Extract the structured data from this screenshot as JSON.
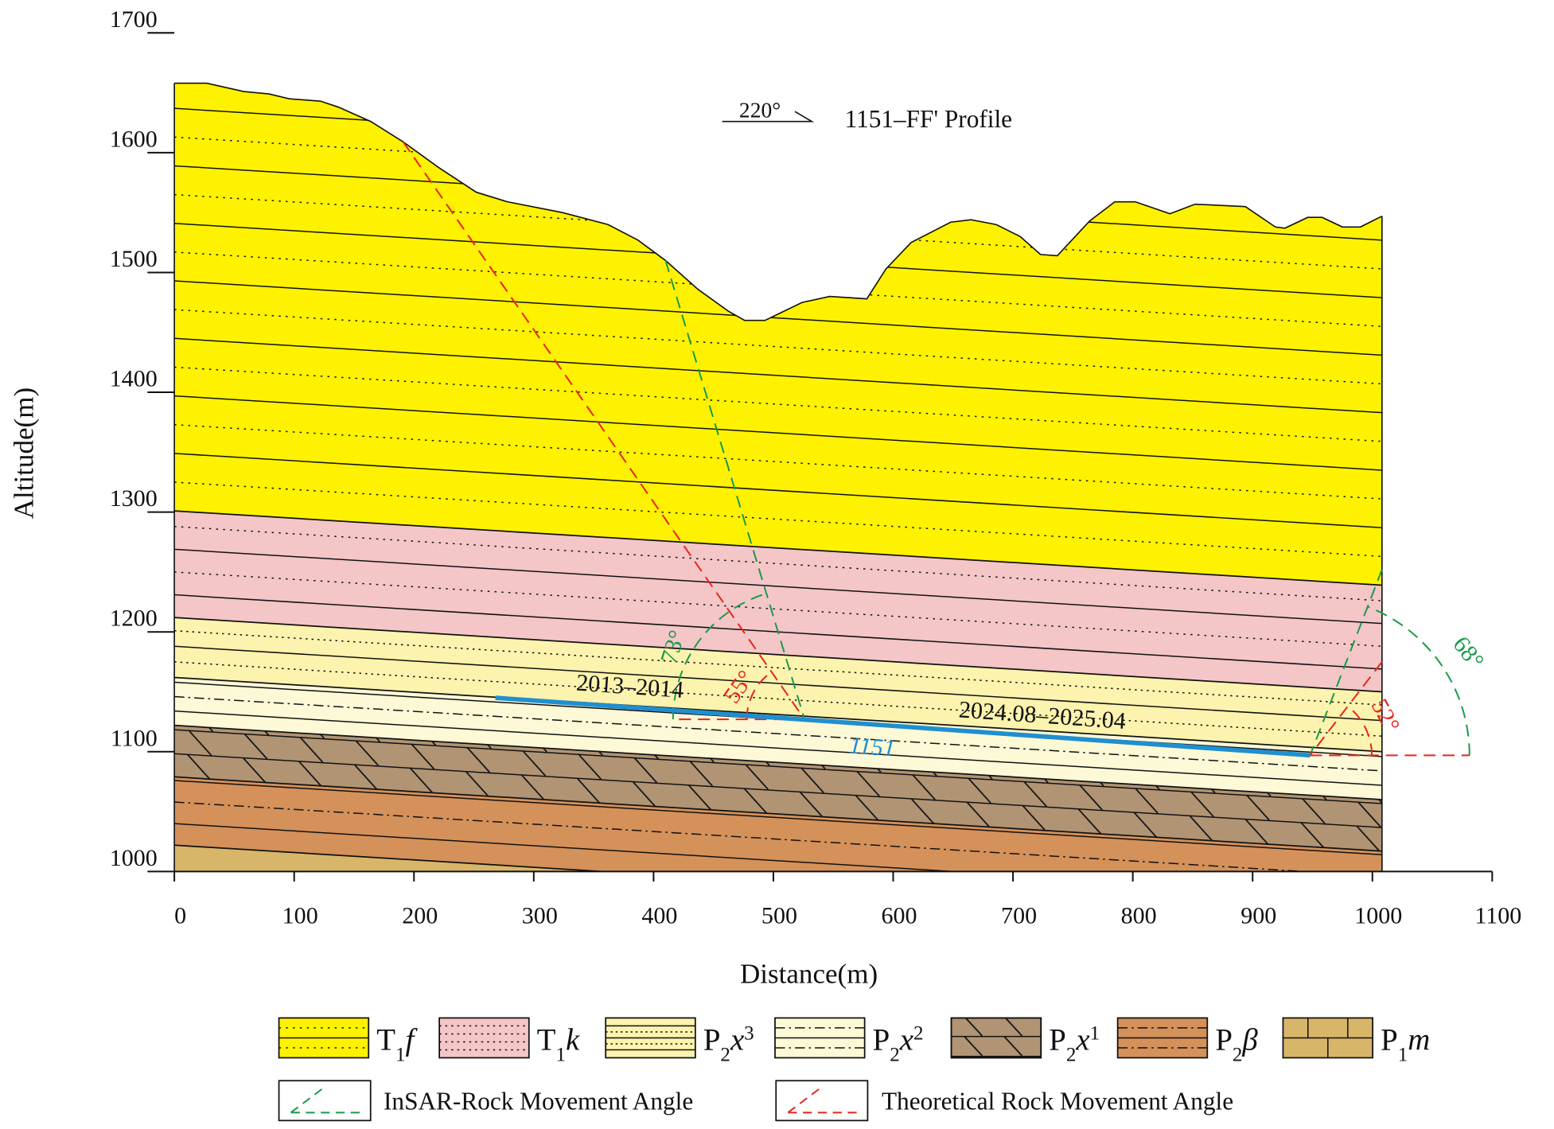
{
  "chart_data": {
    "type": "profile",
    "title": "1151–FF' Profile",
    "direction": "220°",
    "x_label": "Distance(m)",
    "y_label": "Altitude(m)",
    "xlim": [
      0,
      1100
    ],
    "xticks": [
      0,
      100,
      200,
      300,
      400,
      500,
      600,
      700,
      800,
      900,
      1000,
      1100
    ],
    "ylim": [
      1000,
      1700
    ],
    "yticks": [
      1000,
      1100,
      1200,
      1300,
      1400,
      1500,
      1600,
      1700
    ],
    "surface": {
      "x": [
        0,
        27,
        58,
        79,
        96,
        122,
        137,
        164,
        191,
        220,
        252,
        278,
        324,
        362,
        387,
        410,
        437,
        462,
        476,
        493,
        524,
        547,
        578,
        594,
        615,
        648,
        665,
        686,
        706,
        723,
        737,
        764,
        785,
        802,
        831,
        852,
        894,
        919,
        927,
        946,
        958,
        975,
        990,
        1008
      ],
      "y": [
        1658,
        1658,
        1651,
        1649,
        1645,
        1643,
        1638,
        1626,
        1609,
        1588,
        1567,
        1559,
        1550,
        1540,
        1527,
        1510,
        1486,
        1468,
        1460,
        1460,
        1475,
        1480,
        1478,
        1503,
        1525,
        1542,
        1544,
        1540,
        1530,
        1515,
        1514,
        1543,
        1559,
        1559,
        1549,
        1557,
        1555,
        1538,
        1537,
        1546,
        1546,
        1538,
        1538,
        1547
      ]
    },
    "boundary_x": [
      0,
      1008
    ],
    "layers": [
      {
        "name": {
          "main": "T",
          "sub": "1",
          "italic": "f"
        },
        "color": "#fff200",
        "base": [
          1301,
          1239
        ]
      },
      {
        "name": {
          "main": "T",
          "sub": "1",
          "italic": "k"
        },
        "color": "#f4c6c8",
        "base": [
          1212,
          1150
        ]
      },
      {
        "name": {
          "main": "P",
          "sub": "2",
          "italic": "x",
          "sup": "3"
        },
        "color": "#fcf3ae",
        "base": [
          1162,
          1100
        ]
      },
      {
        "name": {
          "main": "P",
          "sub": "2",
          "italic": "x",
          "sup": "2"
        },
        "color": "#fdf8d6",
        "base": [
          1122,
          1060
        ]
      },
      {
        "name": {
          "main": "P",
          "sub": "2",
          "italic": "x",
          "sup": "1"
        },
        "color": "#b09474",
        "base": [
          1079,
          1017
        ]
      },
      {
        "name": {
          "main": "P",
          "sub": "2",
          "italic": "β"
        },
        "color": "#d4915a",
        "base": [
          1022,
          960
        ]
      },
      {
        "name": {
          "main": "P",
          "sub": "1",
          "italic": "m"
        },
        "color": "#d8b669"
      }
    ],
    "coal_face": {
      "name": "1151",
      "color": "#1f8fd0",
      "x": [
        268,
        948
      ],
      "y": [
        1145,
        1097
      ],
      "periods": [
        "2013–2014",
        "2024.08–2025.04"
      ]
    },
    "angles": [
      {
        "label": "73°",
        "color": "#1a9a4a",
        "x": [
          410,
          526
        ],
        "y": [
          1510,
          1127
        ]
      },
      {
        "label": "55°",
        "color": "#e8251f",
        "x": [
          191,
          526
        ],
        "y": [
          1609,
          1127
        ]
      },
      {
        "label": "68°",
        "color": "#1a9a4a",
        "x": [
          1008,
          948
        ],
        "y": [
          1252,
          1097
        ]
      },
      {
        "label": "52°",
        "color": "#e8251f",
        "x": [
          1008,
          948
        ],
        "y": [
          1175,
          1097
        ]
      }
    ],
    "legend_lines": [
      {
        "label": "InSAR-Rock Movement Angle",
        "color": "#1a9a4a"
      },
      {
        "label": "Theoretical Rock Movement Angle",
        "color": "#e8251f"
      }
    ]
  }
}
